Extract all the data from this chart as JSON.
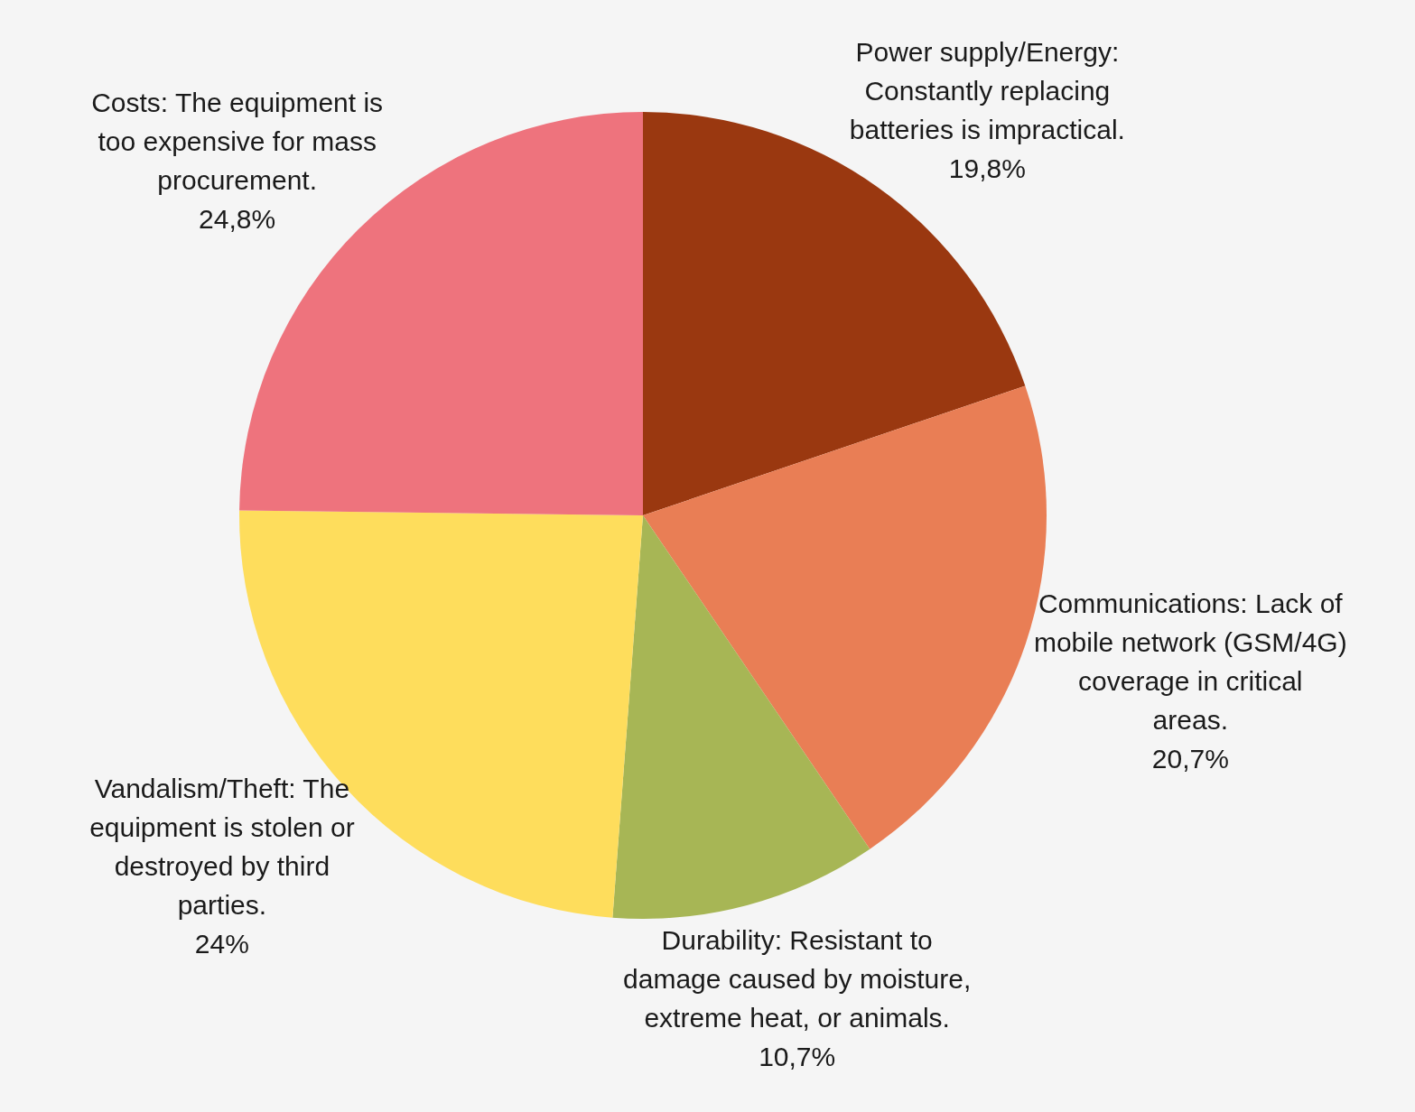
{
  "chart_data": {
    "type": "pie",
    "categories": [
      "Power supply/Energy: Constantly replacing batteries is impractical.",
      "Communications: Lack of mobile network (GSM/4G) coverage in critical areas.",
      "Durability: Resistant to damage caused by moisture, extreme heat, or animals.",
      "Vandalism/Theft: The equipment is stolen or destroyed by third parties.",
      "Costs: The equipment is too expensive for mass procurement."
    ],
    "values": [
      19.8,
      20.7,
      10.7,
      24,
      24.8
    ],
    "value_labels": [
      "19,8%",
      "20,7%",
      "10,7%",
      "24%",
      "24,8%"
    ],
    "colors": [
      "#9a3810",
      "#e97e55",
      "#a7b655",
      "#fedd5c",
      "#ee737d"
    ],
    "legend": false
  }
}
